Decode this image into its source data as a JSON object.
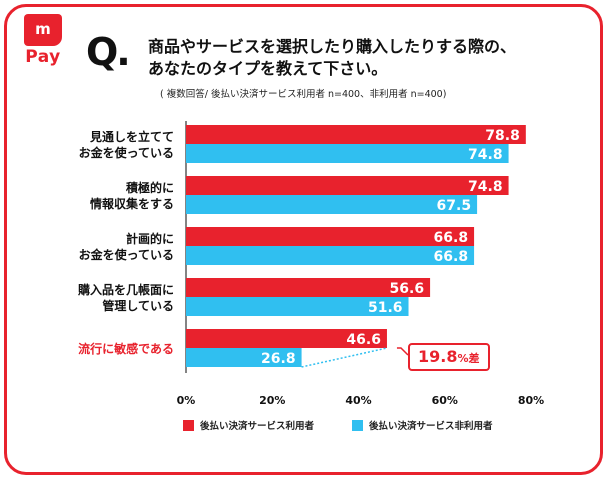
{
  "logo": {
    "mark": "m",
    "text": "Pay"
  },
  "question": {
    "q": "Q.",
    "line1": "商品やサービスを選択したり購入したりする際の、",
    "line2": "あなたのタイプを教えて下さい。"
  },
  "note": "( 複数回答/ 後払い決済サービス利用者 n=400、非利用者 n=400)",
  "highlight": {
    "value": "19.8",
    "unit": "%差"
  },
  "colors": {
    "accent": "#e8222d",
    "user": "#e8222d",
    "nonuser": "#30bff0",
    "highlight_label": "#e8222d"
  },
  "chart_data": {
    "type": "bar",
    "orientation": "horizontal",
    "categories": [
      [
        "見通しを立てて",
        "お金を使っている"
      ],
      [
        "積極的に",
        "情報収集をする"
      ],
      [
        "計画的に",
        "お金を使っている"
      ],
      [
        "購入品を几帳面に",
        "管理している"
      ],
      [
        "流行に敏感である"
      ]
    ],
    "highlighted_category_index": 4,
    "series": [
      {
        "name": "後払い決済サービス利用者",
        "values": [
          78.8,
          74.8,
          66.8,
          56.6,
          46.6
        ]
      },
      {
        "name": "後払い決済サービス非利用者",
        "values": [
          74.8,
          67.5,
          66.8,
          51.6,
          26.8
        ]
      }
    ],
    "xlim": [
      0,
      80
    ],
    "xticks": [
      0,
      20,
      40,
      60,
      80
    ],
    "xtick_labels": [
      "0%",
      "20%",
      "40%",
      "60%",
      "80%"
    ],
    "legend": "bottom",
    "grid": false
  }
}
